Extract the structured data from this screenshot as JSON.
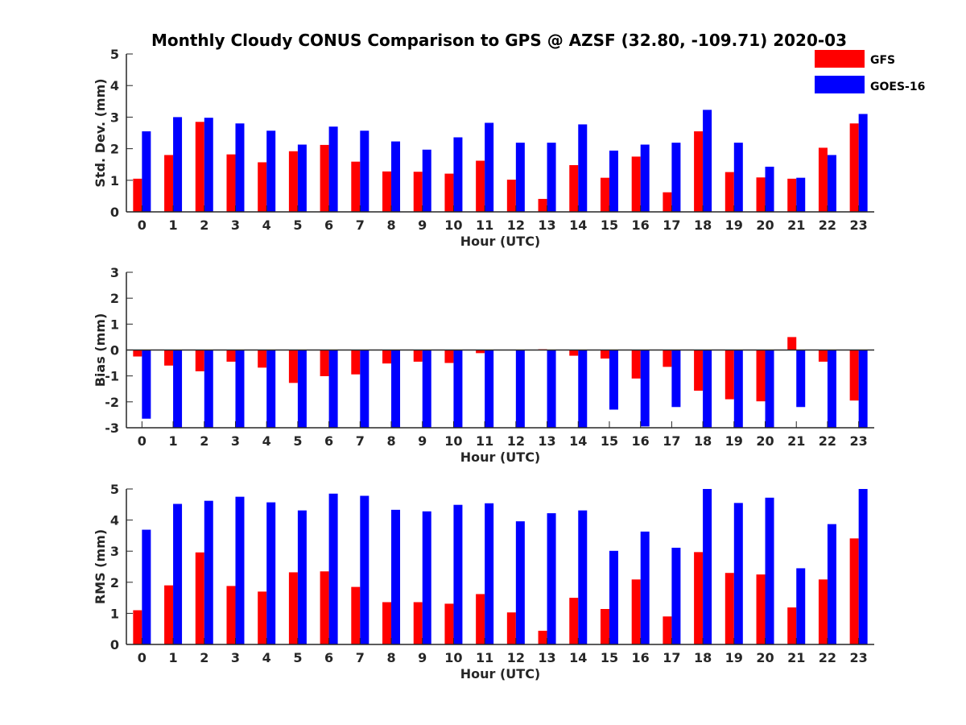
{
  "title": "Monthly Cloudy CONUS Comparison to GPS @ AZSF (32.80, -109.71) 2020-03",
  "legend": {
    "placement": "top-right",
    "entries": [
      {
        "name": "GFS",
        "color": "#ff0000"
      },
      {
        "name": "GOES-16",
        "color": "#0000ff"
      }
    ]
  },
  "chart_data": [
    {
      "type": "bar",
      "xlabel": "Hour (UTC)",
      "ylabel": "Std. Dev. (mm)",
      "ylim": [
        0,
        5
      ],
      "yticks": [
        0,
        1,
        2,
        3,
        4,
        5
      ],
      "categories": [
        "0",
        "1",
        "2",
        "3",
        "4",
        "5",
        "6",
        "7",
        "8",
        "9",
        "10",
        "11",
        "12",
        "13",
        "14",
        "15",
        "16",
        "17",
        "18",
        "19",
        "20",
        "21",
        "22",
        "23"
      ],
      "series": [
        {
          "name": "GFS",
          "color": "#ff0000",
          "values": [
            1.05,
            1.8,
            2.85,
            1.82,
            1.57,
            1.92,
            2.12,
            1.59,
            1.28,
            1.27,
            1.21,
            1.62,
            1.02,
            0.41,
            1.48,
            1.08,
            1.75,
            0.62,
            2.55,
            1.26,
            1.09,
            1.05,
            2.03,
            2.8
          ]
        },
        {
          "name": "GOES-16",
          "color": "#0000ff",
          "values": [
            2.55,
            3.0,
            2.98,
            2.8,
            2.57,
            2.13,
            2.7,
            2.57,
            2.23,
            1.97,
            2.36,
            2.82,
            2.19,
            2.19,
            2.77,
            1.94,
            2.13,
            2.19,
            3.23,
            2.19,
            1.43,
            1.08,
            1.8,
            3.1
          ]
        }
      ]
    },
    {
      "type": "bar",
      "xlabel": "Hour (UTC)",
      "ylabel": "Bias (mm)",
      "ylim": [
        -3,
        3
      ],
      "yticks": [
        -3,
        -2,
        -1,
        0,
        1,
        2,
        3
      ],
      "zero_line": true,
      "categories": [
        "0",
        "1",
        "2",
        "3",
        "4",
        "5",
        "6",
        "7",
        "8",
        "9",
        "10",
        "11",
        "12",
        "13",
        "14",
        "15",
        "16",
        "17",
        "18",
        "19",
        "20",
        "21",
        "22",
        "23"
      ],
      "series": [
        {
          "name": "GFS",
          "color": "#ff0000",
          "values": [
            -0.25,
            -0.6,
            -0.82,
            -0.45,
            -0.68,
            -1.27,
            -1.01,
            -0.94,
            -0.52,
            -0.45,
            -0.5,
            -0.12,
            0.0,
            0.03,
            -0.22,
            -0.33,
            -1.1,
            -0.65,
            -1.57,
            -1.9,
            -1.98,
            0.5,
            -0.45,
            -1.95
          ]
        },
        {
          "name": "GOES-16",
          "color": "#0000ff",
          "values": [
            -2.65,
            -3.0,
            -3.0,
            -3.0,
            -3.0,
            -3.0,
            -3.0,
            -3.0,
            -3.0,
            -3.0,
            -3.0,
            -3.0,
            -3.0,
            -3.0,
            -3.0,
            -2.3,
            -2.95,
            -2.2,
            -3.0,
            -3.0,
            -3.0,
            -2.2,
            -3.0,
            -3.0
          ]
        }
      ]
    },
    {
      "type": "bar",
      "xlabel": "Hour (UTC)",
      "ylabel": "RMS (mm)",
      "ylim": [
        0,
        5
      ],
      "yticks": [
        0,
        1,
        2,
        3,
        4,
        5
      ],
      "categories": [
        "0",
        "1",
        "2",
        "3",
        "4",
        "5",
        "6",
        "7",
        "8",
        "9",
        "10",
        "11",
        "12",
        "13",
        "14",
        "15",
        "16",
        "17",
        "18",
        "19",
        "20",
        "21",
        "22",
        "23"
      ],
      "series": [
        {
          "name": "GFS",
          "color": "#ff0000",
          "values": [
            1.1,
            1.9,
            2.96,
            1.88,
            1.7,
            2.32,
            2.35,
            1.85,
            1.36,
            1.36,
            1.31,
            1.62,
            1.03,
            0.44,
            1.5,
            1.14,
            2.09,
            0.9,
            2.97,
            2.3,
            2.25,
            1.19,
            2.09,
            3.41
          ]
        },
        {
          "name": "GOES-16",
          "color": "#0000ff",
          "values": [
            3.69,
            4.52,
            4.62,
            4.75,
            4.57,
            4.31,
            4.85,
            4.78,
            4.33,
            4.28,
            4.49,
            4.54,
            3.96,
            4.22,
            4.31,
            3.01,
            3.63,
            3.11,
            5.0,
            4.55,
            4.72,
            2.45,
            3.87,
            5.0
          ]
        }
      ]
    }
  ]
}
